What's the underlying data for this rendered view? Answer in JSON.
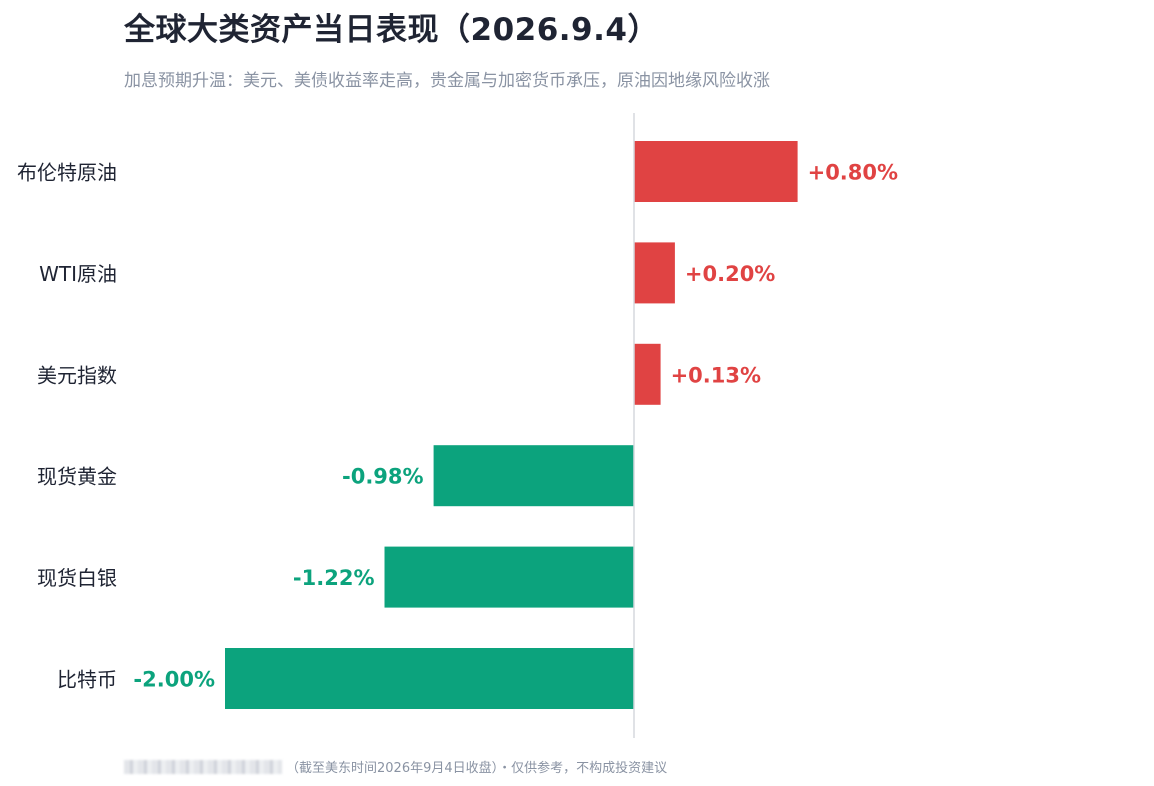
{
  "header": {
    "title": "全球大类资产当日表现（2026.9.4）",
    "subtitle": "加息预期升温：美元、美债收益率走高，贵金属与加密货币承压，原油因地缘风险收涨"
  },
  "footer": {
    "note": "（截至美东时间2026年9月4日收盘）・仅供参考，不构成投资建议"
  },
  "colors": {
    "positive": "#e04343",
    "negative": "#0ca37d",
    "axis": "#d5d8de",
    "label": "#1f2433"
  },
  "chart_data": {
    "type": "bar",
    "orientation": "horizontal",
    "categories": [
      "布伦特原油",
      "WTI原油",
      "美元指数",
      "现货黄金",
      "现货白银",
      "比特币"
    ],
    "values": [
      0.8,
      0.2,
      0.13,
      -0.98,
      -1.22,
      -2.0
    ],
    "value_labels": [
      "+0.80%",
      "+0.20%",
      "+0.13%",
      "-0.98%",
      "-1.22%",
      "-2.00%"
    ],
    "unit": "%",
    "xlim": [
      -2.0,
      2.0
    ],
    "grid": false,
    "legend": "none"
  }
}
